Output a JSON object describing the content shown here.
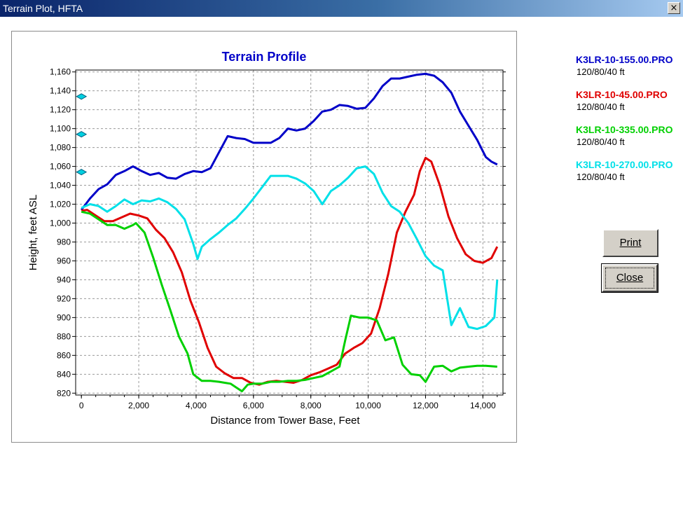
{
  "window": {
    "title": "Terrain Plot, HFTA",
    "close_glyph": "×"
  },
  "buttons": {
    "print_label": "Print",
    "close_label": "Close"
  },
  "legend": [
    {
      "name": "K3LR-10-155.00.PRO",
      "desc": "120/80/40 ft",
      "color": "#0000c8"
    },
    {
      "name": "K3LR-10-45.00.PRO",
      "desc": "120/80/40 ft",
      "color": "#e00000"
    },
    {
      "name": "K3LR-10-335.00.PRO",
      "desc": "120/80/40 ft",
      "color": "#00d000"
    },
    {
      "name": "K3LR-10-270.00.PRO",
      "desc": "120/80/40 ft",
      "color": "#00e0e8"
    }
  ],
  "chart_data": {
    "type": "line",
    "title": "Terrain Profile",
    "xlabel": "Distance from Tower Base, Feet",
    "ylabel": "Height, feet ASL",
    "xlim": [
      -200,
      14700
    ],
    "ylim": [
      818,
      1162
    ],
    "x_ticks": [
      0,
      2000,
      4000,
      6000,
      8000,
      10000,
      12000,
      14000
    ],
    "x_tick_labels": [
      "0",
      "2,000",
      "4,000",
      "6,000",
      "8,000",
      "10,000",
      "12,000",
      "14,000"
    ],
    "y_ticks": [
      820,
      840,
      860,
      880,
      900,
      920,
      940,
      960,
      980,
      1000,
      1020,
      1040,
      1060,
      1080,
      1100,
      1120,
      1140,
      1160
    ],
    "y_tick_labels": [
      "820",
      "840",
      "860",
      "880",
      "900",
      "920",
      "940",
      "960",
      "980",
      "1,000",
      "1,020",
      "1,040",
      "1,060",
      "1,080",
      "1,100",
      "1,120",
      "1,140",
      "1,160"
    ],
    "grid": true,
    "antenna_heights": [
      1134,
      1094,
      1054
    ],
    "antenna_marker_color": "#00d0e0",
    "series": [
      {
        "name": "K3LR-10-155.00.PRO",
        "color": "#0000c8",
        "points": [
          [
            0,
            1014
          ],
          [
            300,
            1026
          ],
          [
            600,
            1036
          ],
          [
            900,
            1041
          ],
          [
            1200,
            1051
          ],
          [
            1500,
            1055
          ],
          [
            1800,
            1060
          ],
          [
            2100,
            1055
          ],
          [
            2400,
            1051
          ],
          [
            2700,
            1053
          ],
          [
            3000,
            1048
          ],
          [
            3300,
            1047
          ],
          [
            3600,
            1052
          ],
          [
            3900,
            1055
          ],
          [
            4200,
            1054
          ],
          [
            4500,
            1058
          ],
          [
            4800,
            1075
          ],
          [
            5100,
            1092
          ],
          [
            5400,
            1090
          ],
          [
            5700,
            1089
          ],
          [
            6000,
            1085
          ],
          [
            6300,
            1085
          ],
          [
            6600,
            1085
          ],
          [
            6900,
            1090
          ],
          [
            7200,
            1100
          ],
          [
            7500,
            1098
          ],
          [
            7800,
            1100
          ],
          [
            8100,
            1108
          ],
          [
            8400,
            1118
          ],
          [
            8700,
            1120
          ],
          [
            9000,
            1125
          ],
          [
            9300,
            1124
          ],
          [
            9600,
            1121
          ],
          [
            9900,
            1122
          ],
          [
            10200,
            1132
          ],
          [
            10500,
            1145
          ],
          [
            10800,
            1153
          ],
          [
            11100,
            1153
          ],
          [
            11400,
            1155
          ],
          [
            11700,
            1157
          ],
          [
            12000,
            1158
          ],
          [
            12300,
            1156
          ],
          [
            12600,
            1149
          ],
          [
            12900,
            1138
          ],
          [
            13200,
            1118
          ],
          [
            13500,
            1103
          ],
          [
            13800,
            1088
          ],
          [
            14100,
            1070
          ],
          [
            14300,
            1065
          ],
          [
            14500,
            1062
          ]
        ]
      },
      {
        "name": "K3LR-10-45.00.PRO",
        "color": "#e00000",
        "points": [
          [
            0,
            1013
          ],
          [
            200,
            1014
          ],
          [
            500,
            1008
          ],
          [
            800,
            1002
          ],
          [
            1100,
            1002
          ],
          [
            1400,
            1006
          ],
          [
            1700,
            1010
          ],
          [
            2000,
            1008
          ],
          [
            2300,
            1005
          ],
          [
            2600,
            993
          ],
          [
            2900,
            984
          ],
          [
            3200,
            969
          ],
          [
            3500,
            948
          ],
          [
            3800,
            918
          ],
          [
            4100,
            895
          ],
          [
            4400,
            868
          ],
          [
            4700,
            848
          ],
          [
            5000,
            841
          ],
          [
            5300,
            836
          ],
          [
            5600,
            836
          ],
          [
            5900,
            831
          ],
          [
            6200,
            829
          ],
          [
            6500,
            832
          ],
          [
            6800,
            833
          ],
          [
            7100,
            832
          ],
          [
            7400,
            831
          ],
          [
            7700,
            834
          ],
          [
            8000,
            839
          ],
          [
            8300,
            842
          ],
          [
            8600,
            846
          ],
          [
            8900,
            850
          ],
          [
            9200,
            862
          ],
          [
            9500,
            868
          ],
          [
            9800,
            873
          ],
          [
            10100,
            883
          ],
          [
            10400,
            910
          ],
          [
            10700,
            946
          ],
          [
            11000,
            990
          ],
          [
            11300,
            1012
          ],
          [
            11600,
            1030
          ],
          [
            11800,
            1055
          ],
          [
            12000,
            1069
          ],
          [
            12200,
            1065
          ],
          [
            12500,
            1040
          ],
          [
            12800,
            1007
          ],
          [
            13100,
            984
          ],
          [
            13400,
            967
          ],
          [
            13700,
            960
          ],
          [
            14000,
            958
          ],
          [
            14300,
            963
          ],
          [
            14500,
            975
          ]
        ]
      },
      {
        "name": "K3LR-10-335.00.PRO",
        "color": "#00d000",
        "points": [
          [
            0,
            1012
          ],
          [
            300,
            1010
          ],
          [
            600,
            1004
          ],
          [
            900,
            998
          ],
          [
            1200,
            998
          ],
          [
            1500,
            994
          ],
          [
            1800,
            998
          ],
          [
            1900,
            1000
          ],
          [
            2200,
            990
          ],
          [
            2500,
            964
          ],
          [
            2800,
            935
          ],
          [
            3100,
            908
          ],
          [
            3400,
            880
          ],
          [
            3700,
            862
          ],
          [
            3900,
            840
          ],
          [
            4200,
            833
          ],
          [
            4500,
            833
          ],
          [
            4800,
            832
          ],
          [
            5000,
            831
          ],
          [
            5200,
            830
          ],
          [
            5400,
            826
          ],
          [
            5600,
            822
          ],
          [
            5800,
            829
          ],
          [
            6000,
            830
          ],
          [
            6300,
            830
          ],
          [
            6600,
            832
          ],
          [
            6900,
            832
          ],
          [
            7200,
            833
          ],
          [
            7500,
            833
          ],
          [
            7800,
            834
          ],
          [
            8100,
            836
          ],
          [
            8400,
            838
          ],
          [
            8700,
            843
          ],
          [
            9000,
            848
          ],
          [
            9200,
            876
          ],
          [
            9400,
            902
          ],
          [
            9700,
            900
          ],
          [
            10000,
            900
          ],
          [
            10300,
            897
          ],
          [
            10600,
            876
          ],
          [
            10900,
            879
          ],
          [
            11200,
            850
          ],
          [
            11500,
            840
          ],
          [
            11800,
            839
          ],
          [
            12000,
            832
          ],
          [
            12300,
            848
          ],
          [
            12600,
            849
          ],
          [
            12900,
            843
          ],
          [
            13200,
            847
          ],
          [
            13500,
            848
          ],
          [
            13800,
            849
          ],
          [
            14100,
            849
          ],
          [
            14500,
            848
          ]
        ]
      },
      {
        "name": "K3LR-10-270.00.PRO",
        "color": "#00e0e8",
        "points": [
          [
            0,
            1016
          ],
          [
            300,
            1020
          ],
          [
            600,
            1018
          ],
          [
            900,
            1012
          ],
          [
            1200,
            1018
          ],
          [
            1500,
            1025
          ],
          [
            1800,
            1020
          ],
          [
            2100,
            1024
          ],
          [
            2400,
            1023
          ],
          [
            2700,
            1026
          ],
          [
            3000,
            1022
          ],
          [
            3300,
            1015
          ],
          [
            3600,
            1004
          ],
          [
            3900,
            978
          ],
          [
            4050,
            962
          ],
          [
            4200,
            975
          ],
          [
            4500,
            983
          ],
          [
            4800,
            990
          ],
          [
            5100,
            998
          ],
          [
            5400,
            1005
          ],
          [
            5700,
            1015
          ],
          [
            6000,
            1026
          ],
          [
            6300,
            1038
          ],
          [
            6600,
            1050
          ],
          [
            6900,
            1050
          ],
          [
            7200,
            1050
          ],
          [
            7500,
            1047
          ],
          [
            7800,
            1042
          ],
          [
            8100,
            1034
          ],
          [
            8400,
            1020
          ],
          [
            8700,
            1034
          ],
          [
            9000,
            1040
          ],
          [
            9300,
            1048
          ],
          [
            9600,
            1058
          ],
          [
            9900,
            1060
          ],
          [
            10200,
            1052
          ],
          [
            10500,
            1032
          ],
          [
            10800,
            1018
          ],
          [
            11100,
            1012
          ],
          [
            11400,
            1000
          ],
          [
            11700,
            983
          ],
          [
            12000,
            965
          ],
          [
            12300,
            955
          ],
          [
            12600,
            950
          ],
          [
            12900,
            892
          ],
          [
            13200,
            910
          ],
          [
            13500,
            890
          ],
          [
            13800,
            888
          ],
          [
            14100,
            891
          ],
          [
            14400,
            900
          ],
          [
            14500,
            940
          ]
        ]
      }
    ]
  }
}
